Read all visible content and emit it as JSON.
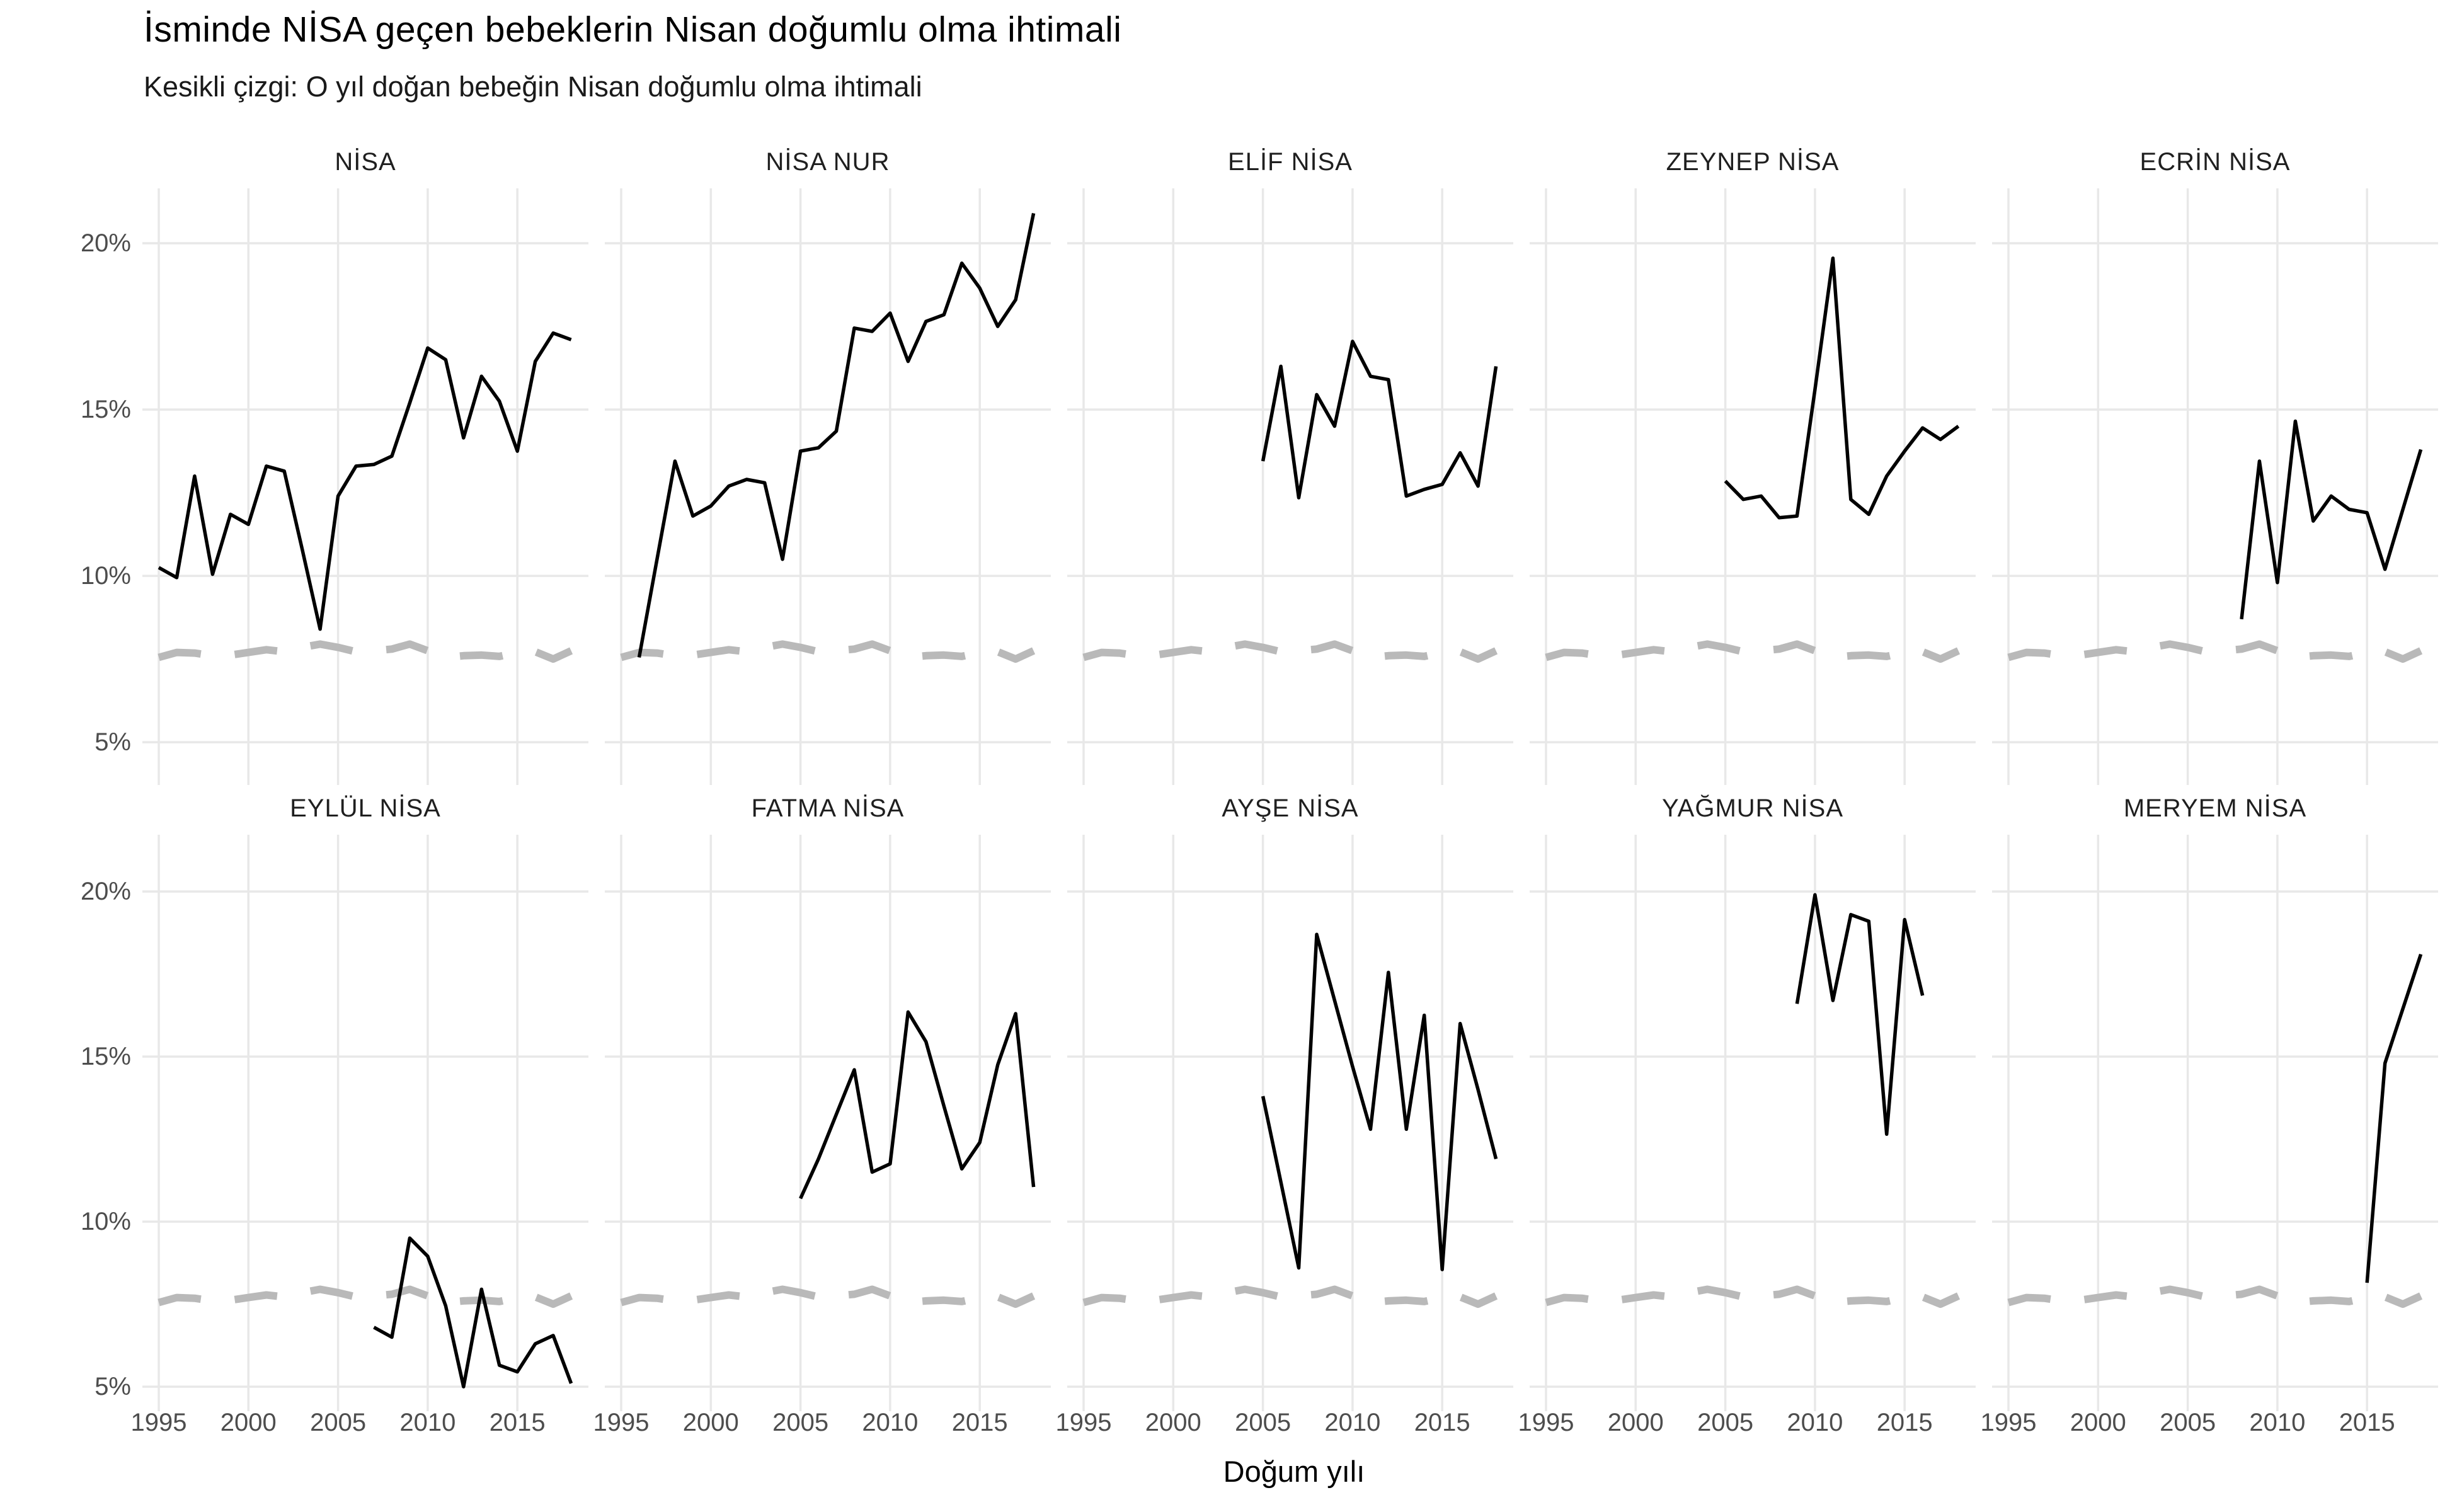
{
  "chart_data": {
    "type": "line",
    "title": "İsminde NİSA geçen bebeklerin Nisan doğumlu olma ihtimali",
    "subtitle": "Kesikli çizgi: O yıl doğan bebeğin Nisan doğumlu olma ihtimali",
    "xlabel": "Doğum yılı",
    "ylabel": "",
    "grid": true,
    "legend": "none",
    "ylim": [
      3.7,
      21.7
    ],
    "y_ticks": [
      {
        "label": "20%",
        "value": 20
      },
      {
        "label": "15%",
        "value": 15
      },
      {
        "label": "10%",
        "value": 10
      },
      {
        "label": "5%",
        "value": 5
      }
    ],
    "x_ticks": [
      1995,
      2000,
      2005,
      2010,
      2015
    ],
    "x_range_shown": [
      1995,
      2018
    ],
    "baseline": {
      "meaning": "O yıl doğan bebeğin Nisan doğumlu olma ihtimali (kesikli çizgi)",
      "style": "dashed-gray",
      "years": [
        1995,
        1996,
        1997,
        1998,
        1999,
        2000,
        2001,
        2002,
        2003,
        2004,
        2005,
        2006,
        2007,
        2008,
        2009,
        2010,
        2011,
        2012,
        2013,
        2014,
        2015,
        2016,
        2017,
        2018
      ],
      "values": [
        7.55,
        7.7,
        7.68,
        7.6,
        7.62,
        7.7,
        7.78,
        7.72,
        7.85,
        7.95,
        7.85,
        7.72,
        7.75,
        7.8,
        7.95,
        7.75,
        7.55,
        7.6,
        7.62,
        7.58,
        7.7,
        7.72,
        7.5,
        7.75
      ]
    },
    "facets": [
      {
        "name": "NİSA",
        "years": [
          1995,
          1996,
          1997,
          1998,
          1999,
          2000,
          2001,
          2002,
          2003,
          2004,
          2005,
          2006,
          2007,
          2008,
          2009,
          2010,
          2011,
          2012,
          2013,
          2014,
          2015,
          2016,
          2017,
          2018
        ],
        "values": [
          10.25,
          9.95,
          13.0,
          10.05,
          11.85,
          11.55,
          13.3,
          13.15,
          10.8,
          8.4,
          12.4,
          13.3,
          13.35,
          13.6,
          15.2,
          16.85,
          16.5,
          14.15,
          16.0,
          15.25,
          13.75,
          16.45,
          17.3,
          17.1
        ]
      },
      {
        "name": "NİSA NUR",
        "years": [
          1996,
          1997,
          1998,
          1999,
          2000,
          2001,
          2002,
          2003,
          2004,
          2005,
          2006,
          2007,
          2008,
          2009,
          2010,
          2011,
          2012,
          2013,
          2014,
          2015,
          2016,
          2017,
          2018
        ],
        "values": [
          7.55,
          10.5,
          13.45,
          11.8,
          12.1,
          12.7,
          12.9,
          12.8,
          10.5,
          13.75,
          13.85,
          14.35,
          17.45,
          17.35,
          17.9,
          16.45,
          17.65,
          17.85,
          19.4,
          18.65,
          17.5,
          18.3,
          20.9
        ]
      },
      {
        "name": "ELİF NİSA",
        "years": [
          2005,
          2006,
          2007,
          2008,
          2009,
          2010,
          2011,
          2012,
          2013,
          2014,
          2015,
          2016,
          2017,
          2018
        ],
        "values": [
          13.45,
          16.3,
          12.35,
          15.45,
          14.5,
          17.05,
          16.0,
          15.9,
          12.4,
          12.6,
          12.75,
          13.7,
          12.7,
          16.3
        ]
      },
      {
        "name": "ZEYNEP NİSA",
        "years": [
          2005,
          2006,
          2007,
          2008,
          2009,
          2010,
          2011,
          2012,
          2013,
          2014,
          2015,
          2016,
          2017,
          2018
        ],
        "values": [
          12.85,
          12.3,
          12.4,
          11.75,
          11.8,
          15.6,
          19.55,
          12.3,
          11.85,
          13.0,
          13.75,
          14.45,
          14.1,
          14.5
        ]
      },
      {
        "name": "ECRİN NİSA",
        "years": [
          2008,
          2009,
          2010,
          2011,
          2012,
          2013,
          2014,
          2015,
          2016,
          2017,
          2018
        ],
        "values": [
          8.7,
          13.45,
          9.8,
          14.65,
          11.65,
          12.4,
          12.0,
          11.9,
          10.2,
          12.0,
          13.8
        ]
      },
      {
        "name": "EYLÜL NİSA",
        "years": [
          2007,
          2008,
          2009,
          2010,
          2011,
          2012,
          2013,
          2014,
          2015,
          2016,
          2017,
          2018
        ],
        "values": [
          6.8,
          6.5,
          9.5,
          8.95,
          7.45,
          5.0,
          7.95,
          5.65,
          5.45,
          6.3,
          6.55,
          5.1
        ]
      },
      {
        "name": "FATMA NİSA",
        "years": [
          2005,
          2006,
          2007,
          2008,
          2009,
          2010,
          2011,
          2012,
          2013,
          2014,
          2015,
          2016,
          2017,
          2018
        ],
        "values": [
          10.7,
          11.9,
          13.25,
          14.6,
          11.5,
          11.75,
          16.35,
          15.45,
          13.5,
          11.6,
          12.4,
          14.75,
          16.3,
          11.05
        ]
      },
      {
        "name": "AYŞE NİSA",
        "years": [
          2005,
          2006,
          2007,
          2008,
          2009,
          2010,
          2011,
          2012,
          2013,
          2014,
          2015,
          2016,
          2017,
          2018
        ],
        "values": [
          13.8,
          11.2,
          8.6,
          18.7,
          16.7,
          14.7,
          12.8,
          17.55,
          12.8,
          16.25,
          8.55,
          16.0,
          14.0,
          11.9
        ]
      },
      {
        "name": "YAĞMUR NİSA",
        "years": [
          2009,
          2010,
          2011,
          2012,
          2013,
          2014,
          2015,
          2016
        ],
        "values": [
          16.6,
          19.9,
          16.7,
          19.3,
          19.1,
          12.65,
          19.15,
          16.85
        ]
      },
      {
        "name": "MERYEM NİSA",
        "years": [
          2015,
          2016,
          2017,
          2018
        ],
        "values": [
          8.15,
          14.8,
          16.45,
          18.1
        ]
      }
    ]
  },
  "colors": {
    "background": "#ffffff",
    "data_line": "#000000",
    "baseline_dash": "#b9b9b9",
    "grid": "#e8e8e8",
    "tick_label": "#4d4d4d",
    "title_text": "#000000",
    "subtitle_text": "#1a1a1a",
    "strip_text": "#1f1f1f"
  }
}
